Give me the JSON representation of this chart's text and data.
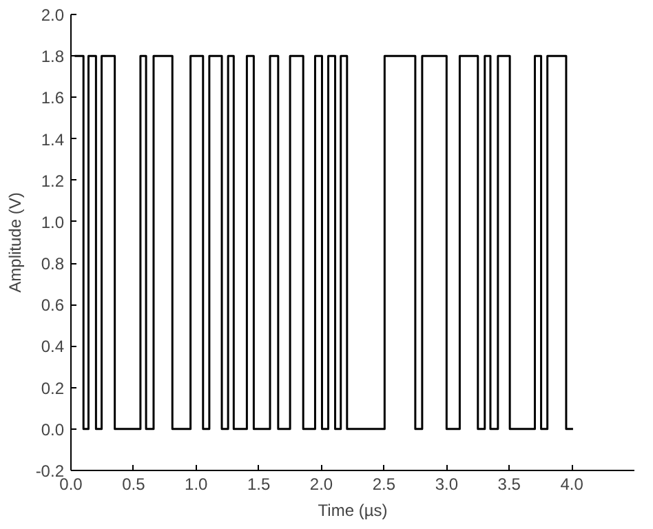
{
  "chart_data": {
    "type": "line",
    "xlabel": "Time (µs)",
    "ylabel": "Amplitude (V)",
    "x": [
      0.03,
      0.1,
      0.1,
      0.14,
      0.14,
      0.2,
      0.2,
      0.245,
      0.245,
      0.35,
      0.35,
      0.555,
      0.555,
      0.6,
      0.6,
      0.66,
      0.66,
      0.81,
      0.81,
      0.955,
      0.955,
      1.055,
      1.055,
      1.105,
      1.105,
      1.205,
      1.205,
      1.255,
      1.255,
      1.3,
      1.3,
      1.405,
      1.405,
      1.46,
      1.46,
      1.59,
      1.59,
      1.655,
      1.655,
      1.75,
      1.75,
      1.855,
      1.855,
      1.95,
      1.95,
      2.005,
      2.005,
      2.055,
      2.055,
      2.11,
      2.11,
      2.155,
      2.155,
      2.205,
      2.205,
      2.505,
      2.505,
      2.75,
      2.75,
      2.805,
      2.805,
      3.0,
      3.0,
      3.105,
      3.105,
      3.25,
      3.25,
      3.305,
      3.305,
      3.35,
      3.35,
      3.41,
      3.41,
      3.505,
      3.505,
      3.705,
      3.705,
      3.755,
      3.755,
      3.805,
      3.805,
      3.955,
      3.955,
      4.01
    ],
    "series": [
      {
        "color": "#000000",
        "values": [
          1.8,
          1.8,
          0,
          0,
          1.8,
          1.8,
          0,
          0,
          1.8,
          1.8,
          0,
          0,
          1.8,
          1.8,
          0,
          0,
          1.8,
          1.8,
          0,
          0,
          1.8,
          1.8,
          0,
          0,
          1.8,
          1.8,
          0,
          0,
          1.8,
          1.8,
          0,
          0,
          1.8,
          1.8,
          0,
          0,
          1.8,
          1.8,
          0,
          0,
          1.8,
          1.8,
          0,
          0,
          1.8,
          1.8,
          0,
          0,
          1.8,
          1.8,
          0,
          0,
          1.8,
          1.8,
          0,
          0,
          1.8,
          1.8,
          0,
          0,
          1.8,
          1.8,
          0,
          0,
          1.8,
          1.8,
          0,
          0,
          1.8,
          1.8,
          0,
          0,
          1.8,
          1.8,
          0,
          0,
          1.8,
          1.8,
          0,
          0,
          1.8,
          1.8,
          0,
          0
        ]
      }
    ],
    "xlim": [
      0,
      4.5
    ],
    "ylim": [
      -0.2,
      2.0
    ],
    "xticks": [
      {
        "value": 0,
        "label": "0.0"
      },
      {
        "value": 0.5,
        "label": "0.5"
      },
      {
        "value": 1,
        "label": "1.0"
      },
      {
        "value": 1.5,
        "label": "1.5"
      },
      {
        "value": 2,
        "label": "2.0"
      },
      {
        "value": 2.5,
        "label": "2.5"
      },
      {
        "value": 3,
        "label": "3.0"
      },
      {
        "value": 3.5,
        "label": "3.5"
      },
      {
        "value": 4,
        "label": "4.0"
      }
    ],
    "yticks": [
      {
        "value": -0.2,
        "label": "-0.2"
      },
      {
        "value": 0,
        "label": "0.0"
      },
      {
        "value": 0.2,
        "label": "0.2"
      },
      {
        "value": 0.4,
        "label": "0.4"
      },
      {
        "value": 0.6,
        "label": "0.6"
      },
      {
        "value": 0.8,
        "label": "0.8"
      },
      {
        "value": 1,
        "label": "1.0"
      },
      {
        "value": 1.2,
        "label": "1.2"
      },
      {
        "value": 1.4,
        "label": "1.4"
      },
      {
        "value": 1.6,
        "label": "1.6"
      },
      {
        "value": 1.8,
        "label": "1.8"
      },
      {
        "value": 2,
        "label": "2.0"
      }
    ],
    "grid": false,
    "marker": "none",
    "line_style": "solid"
  }
}
